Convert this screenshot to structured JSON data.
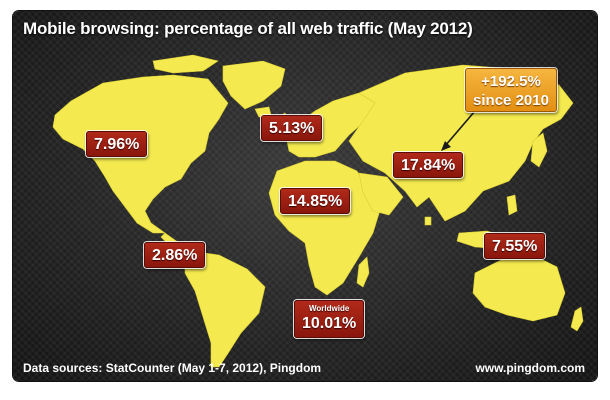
{
  "title": "Mobile browsing: percentage of all web traffic (May 2012)",
  "colors": {
    "land": "#f4ea4f",
    "badge": "#a5200f",
    "callout": "#eea127",
    "background": "#262626"
  },
  "regions": [
    {
      "id": "north-america",
      "value": "7.96%"
    },
    {
      "id": "europe",
      "value": "5.13%"
    },
    {
      "id": "asia",
      "value": "17.84%"
    },
    {
      "id": "africa",
      "value": "14.85%"
    },
    {
      "id": "south-america",
      "value": "2.86%"
    },
    {
      "id": "oceania",
      "value": "7.55%"
    }
  ],
  "worldwide": {
    "label": "Worldwide",
    "value": "10.01%"
  },
  "asia_growth": {
    "line1": "+192.5%",
    "line2": "since 2010"
  },
  "footer": {
    "sources": "Data sources: StatCounter (May 1-7, 2012), Pingdom",
    "site": "www.pingdom.com"
  }
}
